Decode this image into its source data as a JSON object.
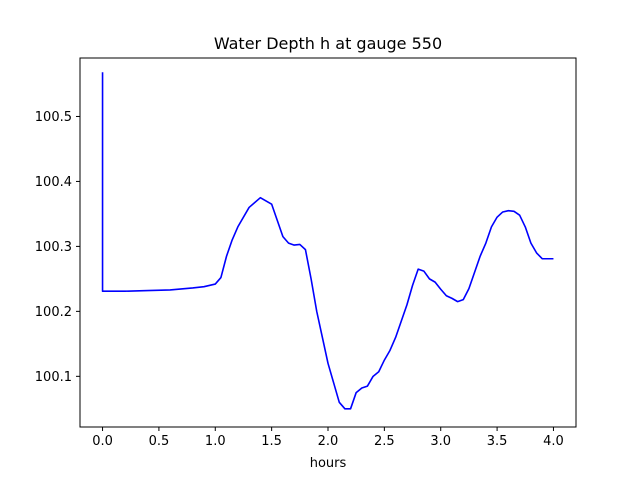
{
  "chart_data": {
    "type": "line",
    "title": "Water Depth h at gauge 550",
    "xlabel": "hours",
    "ylabel": "",
    "xlim": [
      -0.2,
      4.2
    ],
    "ylim": [
      100.022,
      100.59
    ],
    "xticks": [
      0.0,
      0.5,
      1.0,
      1.5,
      2.0,
      2.5,
      3.0,
      3.5,
      4.0
    ],
    "xtick_labels": [
      "0.0",
      "0.5",
      "1.0",
      "1.5",
      "2.0",
      "2.5",
      "3.0",
      "3.5",
      "4.0"
    ],
    "yticks": [
      100.1,
      100.2,
      100.3,
      100.4,
      100.5
    ],
    "ytick_labels": [
      "100.1",
      "100.2",
      "100.3",
      "100.4",
      "100.5"
    ],
    "grid": false,
    "series": [
      {
        "color": "#0000ff",
        "x": [
          0.0,
          0.0,
          0.0,
          0.2,
          0.4,
          0.6,
          0.8,
          0.9,
          1.0,
          1.05,
          1.1,
          1.15,
          1.2,
          1.3,
          1.4,
          1.45,
          1.5,
          1.55,
          1.6,
          1.65,
          1.7,
          1.75,
          1.8,
          1.85,
          1.9,
          1.95,
          2.0,
          2.05,
          2.1,
          2.15,
          2.2,
          2.25,
          2.3,
          2.35,
          2.4,
          2.45,
          2.5,
          2.55,
          2.6,
          2.65,
          2.7,
          2.75,
          2.8,
          2.85,
          2.9,
          2.95,
          3.0,
          3.05,
          3.1,
          3.15,
          3.2,
          3.25,
          3.3,
          3.35,
          3.4,
          3.45,
          3.5,
          3.55,
          3.6,
          3.65,
          3.7,
          3.75,
          3.8,
          3.85,
          3.9,
          3.95,
          4.0
        ],
        "y": [
          100.568,
          100.4,
          100.231,
          100.231,
          100.232,
          100.233,
          100.236,
          100.238,
          100.242,
          100.252,
          100.285,
          100.31,
          100.33,
          100.36,
          100.375,
          100.37,
          100.365,
          100.34,
          100.315,
          100.305,
          100.302,
          100.303,
          100.295,
          100.25,
          100.2,
          100.16,
          100.12,
          100.09,
          100.06,
          100.05,
          100.05,
          100.075,
          100.082,
          100.085,
          100.1,
          100.107,
          100.125,
          100.14,
          100.16,
          100.185,
          100.21,
          100.24,
          100.265,
          100.262,
          100.25,
          100.245,
          100.234,
          100.224,
          100.22,
          100.215,
          100.218,
          100.235,
          100.26,
          100.285,
          100.305,
          100.33,
          100.345,
          100.353,
          100.355,
          100.354,
          100.348,
          100.33,
          100.305,
          100.29,
          100.281,
          100.281,
          100.281
        ]
      }
    ]
  },
  "colors": {
    "line": "#0000ff",
    "axes": "#000000",
    "background": "#ffffff"
  }
}
